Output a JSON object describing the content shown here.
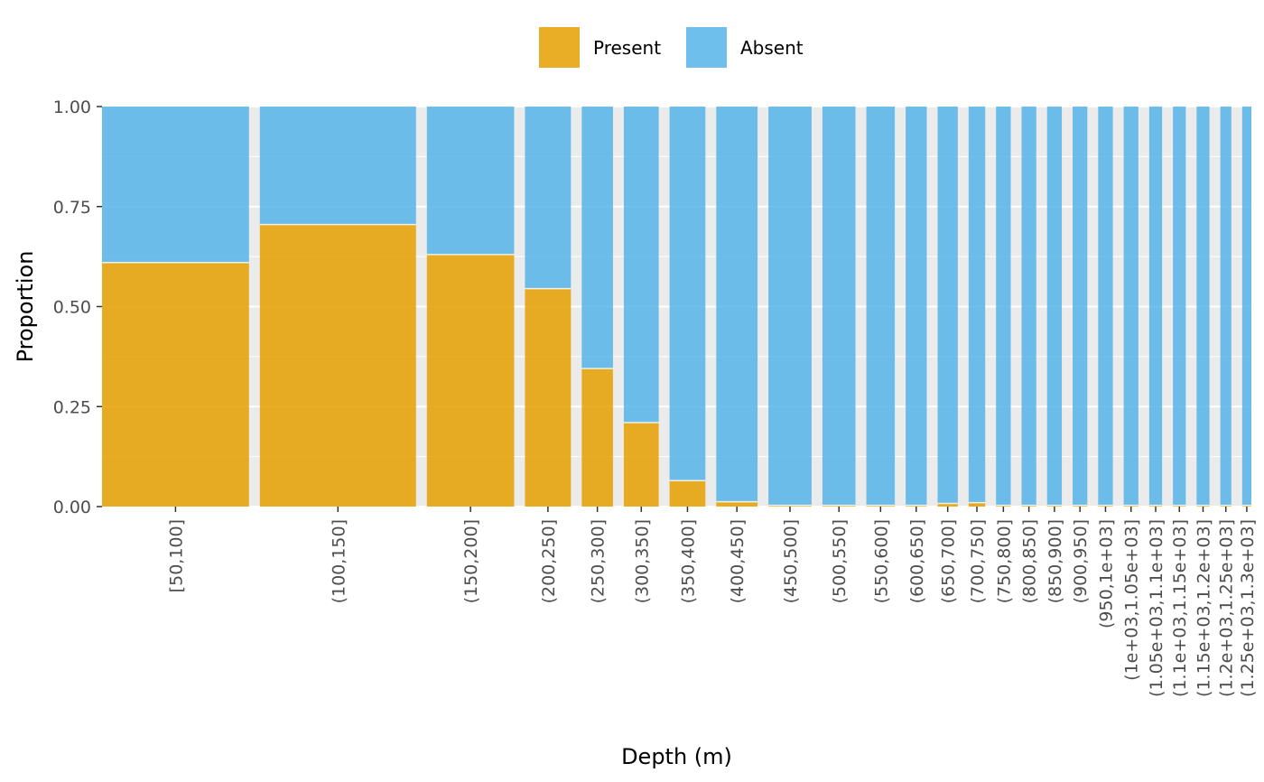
{
  "chart_data": {
    "type": "bar",
    "stacked": true,
    "variable_width": true,
    "xlabel": "Depth (m)",
    "ylabel": "Proportion",
    "ylim": [
      0,
      1
    ],
    "yticks": [
      "0.00",
      "0.25",
      "0.50",
      "0.75",
      "1.00"
    ],
    "grid": true,
    "legend_position": "top",
    "colors": {
      "Present": "#E69F00",
      "Absent": "#56B4E9"
    },
    "series": [
      {
        "name": "Present"
      },
      {
        "name": "Absent"
      }
    ],
    "categories": [
      "[50,100]",
      "(100,150]",
      "(150,200]",
      "(200,250]",
      "(250,300]",
      "(300,350]",
      "(350,400]",
      "(400,450]",
      "(450,500]",
      "(500,550]",
      "(550,600]",
      "(600,650]",
      "(650,700]",
      "(700,750]",
      "(750,800]",
      "(800,850]",
      "(850,900]",
      "(900,950]",
      "(950,1e+03]",
      "(1e+03,1.05e+03]",
      "(1.05e+03,1.1e+03]",
      "(1.1e+03,1.15e+03]",
      "(1.15e+03,1.2e+03]",
      "(1.2e+03,1.25e+03]",
      "(1.25e+03,1.3e+03]"
    ],
    "present": [
      0.61,
      0.705,
      0.63,
      0.545,
      0.345,
      0.21,
      0.065,
      0.012,
      0.003,
      0.003,
      0.003,
      0.003,
      0.008,
      0.01,
      0.003,
      0.003,
      0.003,
      0.003,
      0.003,
      0.003,
      0.003,
      0.003,
      0.003,
      0.003,
      0.003
    ],
    "relative_width": [
      160,
      170,
      95,
      50,
      34,
      38,
      39,
      45,
      47,
      36,
      31,
      23,
      22,
      18,
      16,
      16,
      16,
      16,
      16,
      16,
      14,
      14,
      14,
      12,
      10
    ]
  }
}
